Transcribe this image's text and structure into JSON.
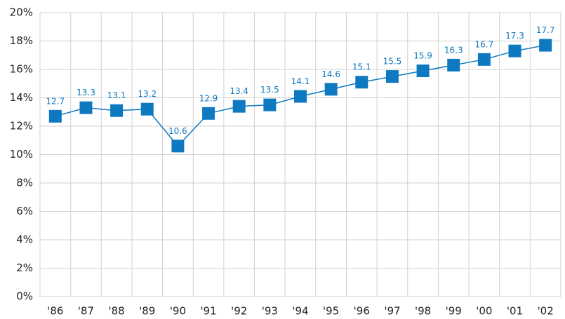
{
  "chart_data": {
    "type": "line",
    "categories": [
      "'86",
      "'87",
      "'88",
      "'89",
      "'90",
      "'91",
      "'92",
      "'93",
      "'94",
      "'95",
      "'96",
      "'97",
      "'98",
      "'99",
      "'00",
      "'01",
      "'02"
    ],
    "values": [
      12.7,
      13.3,
      13.1,
      13.2,
      10.6,
      12.9,
      13.4,
      13.5,
      14.1,
      14.6,
      15.1,
      15.5,
      15.9,
      16.3,
      16.7,
      17.3,
      17.7
    ],
    "color": "#0e78c0",
    "ylim": [
      0,
      20
    ],
    "yticks": [
      {
        "value": 0,
        "label": "0%"
      },
      {
        "value": 2,
        "label": "2%"
      },
      {
        "value": 4,
        "label": "4%"
      },
      {
        "value": 6,
        "label": "6%"
      },
      {
        "value": 8,
        "label": "8%"
      },
      {
        "value": 10,
        "label": "10%"
      },
      {
        "value": 12,
        "label": "12%"
      },
      {
        "value": 14,
        "label": "14%"
      },
      {
        "value": 16,
        "label": "16%"
      },
      {
        "value": 18,
        "label": "18%"
      },
      {
        "value": 20,
        "label": "20%"
      }
    ],
    "grid": true
  }
}
